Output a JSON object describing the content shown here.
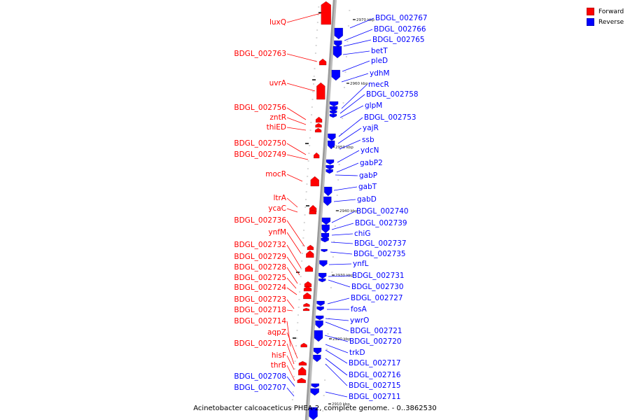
{
  "colors": {
    "forward": "#ff0000",
    "reverse": "#0000ff",
    "axis": "#9a9a9a"
  },
  "legend": {
    "forward": "Forward",
    "reverse": "Reverse"
  },
  "caption": "Acinetobacter calcoaceticus PHEA-2, complete genome. - 0..3862530",
  "ruler_ticks": [
    "2970 kbp",
    "2960 kbp",
    "2950 kbp",
    "2940 kbp",
    "2930 kbp",
    "2920 kbp",
    "2910 kbp"
  ],
  "forward_labels": [
    "luxQ",
    "BDGL_002763",
    "uvrA",
    "BDGL_002756",
    "zntR",
    "thiED",
    "BDGL_002750",
    "BDGL_002749",
    "mocR",
    "ltrA",
    "ycaC",
    "BDGL_002736",
    "ynfM",
    "BDGL_002732",
    "BDGL_002729",
    "BDGL_002728",
    "BDGL_002725",
    "BDGL_002724",
    "BDGL_002723",
    "BDGL_002718",
    "BDGL_002714",
    "aqpZ",
    "BDGL_002712",
    "hisF",
    "thrB"
  ],
  "forward_labels_blue": [
    "BDGL_002708",
    "BDGL_002707"
  ],
  "reverse_labels": [
    "BDGL_002767",
    "BDGL_002766",
    "BDGL_002765",
    "betT",
    "pleD",
    "ydhM",
    "mecR",
    "BDGL_002758",
    "glpM",
    "BDGL_002753",
    "yajR",
    "ssb",
    "ydcN",
    "gabP2",
    "gabP",
    "gabT",
    "gabD",
    "BDGL_002740",
    "BDGL_002739",
    "chiG",
    "BDGL_002737",
    "BDGL_002735",
    "ynfL",
    "BDGL_002731",
    "BDGL_002730",
    "BDGL_002727",
    "fosA",
    "ywrO",
    "BDGL_002721",
    "BDGL_002720",
    "trkD",
    "BDGL_002717",
    "BDGL_002716",
    "BDGL_002715",
    "BDGL_002711"
  ]
}
